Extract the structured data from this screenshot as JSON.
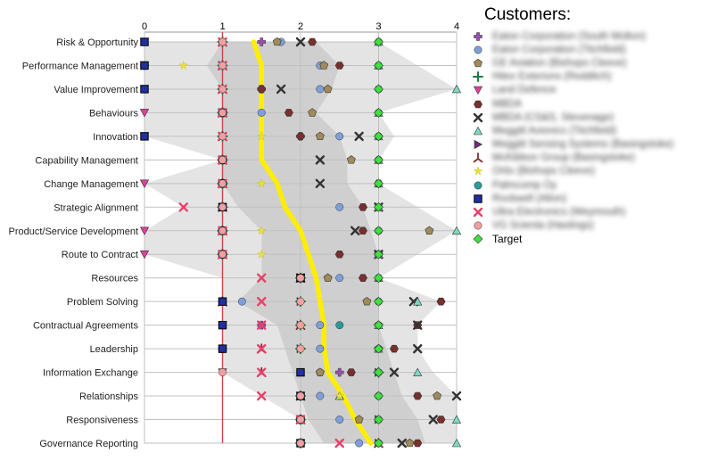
{
  "chart_data": {
    "type": "scatter",
    "orientation": "horizontal-categories",
    "x_axis": {
      "ticks": [
        "0",
        "1",
        "2",
        "3",
        "4"
      ],
      "xlim": [
        0,
        4
      ],
      "position": "top"
    },
    "categories": [
      "Risk & Opportunity",
      "Performance Management",
      "Value Improvement",
      "Behaviours",
      "Innovation",
      "Capability Management",
      "Change Management",
      "Strategic Alignment",
      "Product/Service Development",
      "Route to Contract",
      "Resources",
      "Problem Solving",
      "Contractual Agreements",
      "Leadership",
      "Information Exchange",
      "Relationships",
      "Responsiveness",
      "Governance Reporting"
    ],
    "reference_line_x": 1,
    "average_line": [
      1.4,
      1.5,
      1.5,
      1.5,
      1.5,
      1.5,
      1.7,
      1.8,
      2.0,
      2.1,
      2.2,
      2.25,
      2.3,
      2.3,
      2.35,
      2.55,
      2.7,
      2.9
    ],
    "band_outer": {
      "min": [
        0,
        0,
        0,
        0,
        0,
        1,
        0,
        0.5,
        0,
        0,
        1,
        1,
        1,
        1,
        1,
        1.5,
        2,
        2
      ],
      "max": [
        3,
        3.5,
        4,
        3,
        3.2,
        3,
        3,
        3.5,
        4,
        3.5,
        3,
        3.8,
        3.5,
        3.5,
        3.7,
        4,
        4,
        4
      ]
    },
    "band_inner": {
      "min": [
        1,
        0.8,
        1,
        1,
        1,
        1,
        1,
        1.2,
        1.5,
        1.5,
        1.5,
        1.2,
        1.7,
        1.8,
        1.9,
        2,
        2.1,
        2.3
      ],
      "max": [
        2.2,
        2.5,
        2.4,
        2.2,
        2.5,
        2.6,
        2.6,
        2.8,
        2.9,
        3,
        3,
        3,
        3,
        3.1,
        3.2,
        3.3,
        3.5,
        3.6
      ]
    },
    "series": [
      {
        "name": "Eaton Corporation (South Molton)",
        "symbol": "plus",
        "color": "#9b4fb0",
        "values": [
          1.5,
          0,
          1.5,
          1,
          2,
          1,
          1,
          1,
          1,
          1,
          2,
          1,
          1.5,
          1,
          2.5,
          2,
          2,
          2
        ]
      },
      {
        "name": "Eaton Corporation (Titchfield)",
        "symbol": "circle",
        "color": "#7f9fd8",
        "values": [
          1.75,
          2.25,
          2.25,
          1.5,
          2.5,
          1,
          1,
          2.5,
          1,
          1,
          2.5,
          1.25,
          2.25,
          2.25,
          2.25,
          2.25,
          2.5,
          2.75
        ]
      },
      {
        "name": "GE Aviation (Bishops Cleeve)",
        "symbol": "pentagon",
        "color": "#a08b5a",
        "values": [
          1.7,
          2.3,
          2.35,
          2.15,
          2.25,
          2.65,
          1,
          1,
          3.65,
          3,
          2.35,
          2.85,
          3,
          3,
          2.25,
          3.75,
          2.75,
          3.4
        ]
      },
      {
        "name": "Hitex Exterions (Redditch)",
        "symbol": "star",
        "color": "#1f7a4a",
        "values": [
          1,
          1,
          1,
          1,
          1,
          1,
          1,
          1,
          1,
          1,
          2,
          2,
          2,
          2,
          3,
          2,
          2,
          2
        ]
      },
      {
        "name": "Land Defence",
        "symbol": "triangle-down",
        "color": "#e0409a",
        "values": [
          0,
          0,
          0,
          0,
          0,
          1,
          0,
          1,
          0,
          0,
          2,
          1,
          1,
          1,
          1,
          2,
          2,
          2
        ]
      },
      {
        "name": "MBDA",
        "symbol": "hexagon",
        "color": "#7a2f2f",
        "values": [
          2.15,
          2.5,
          1.5,
          1.85,
          2,
          1,
          3,
          2.8,
          2.8,
          2.5,
          2.8,
          3.8,
          3.5,
          3.2,
          2.65,
          3.5,
          3.8,
          3.5
        ]
      },
      {
        "name": "MBDA (CS&S, Stevenage)",
        "symbol": "x",
        "color": "#333333",
        "values": [
          2,
          1,
          1.75,
          1,
          2.75,
          2.25,
          2.25,
          3,
          2.7,
          3,
          2,
          3.45,
          3.5,
          3.5,
          3.2,
          4,
          3.7,
          3.3
        ]
      },
      {
        "name": "Meggitt Avionics (Titchfield)",
        "symbol": "triangle-up",
        "color": "#7fd8c0",
        "values": [
          3,
          3,
          4,
          3,
          3,
          3,
          3,
          3,
          4,
          3,
          3,
          3.5,
          3,
          3,
          3.5,
          2.5,
          4,
          4
        ]
      },
      {
        "name": "Meggitt Sensing Systems (Basingstoke)",
        "symbol": "triangle-right",
        "color": "#6a2f7a",
        "values": [
          1,
          0,
          1,
          1,
          1,
          1,
          1,
          1,
          1,
          1,
          2,
          2,
          2,
          2,
          3,
          2,
          3,
          3
        ]
      },
      {
        "name": "McKibbon Group (Basingstoke)",
        "symbol": "tri-arrow",
        "color": "#7a3030",
        "values": [
          1,
          1,
          1,
          1,
          1,
          1,
          1,
          1,
          1,
          1,
          2,
          1,
          2,
          1.5,
          1.5,
          2,
          2,
          3
        ]
      },
      {
        "name": "Ortis (Bishops Cleeve)",
        "symbol": "asterisk",
        "color": "#e8e040",
        "values": [
          1,
          0.5,
          1,
          1,
          1.5,
          1,
          1.5,
          1,
          1.5,
          1.5,
          2,
          2,
          2,
          2,
          2,
          2.5,
          3,
          3
        ]
      },
      {
        "name": "Palmcomp Oy",
        "symbol": "circle",
        "color": "#2a9a9a",
        "values": [
          3,
          3,
          3,
          3,
          3,
          3,
          3,
          3,
          3,
          3,
          3,
          3,
          2.5,
          3,
          3,
          3,
          3,
          3
        ]
      },
      {
        "name": "Rockwell (Alton)",
        "symbol": "square",
        "color": "#2030a0",
        "values": [
          0,
          0,
          0,
          1,
          0,
          1,
          1,
          1,
          1,
          1,
          2,
          1,
          1,
          1,
          2,
          2,
          2,
          2
        ]
      },
      {
        "name": "Ultra Electronics (Weymouth)",
        "symbol": "x",
        "color": "#e8406a",
        "values": [
          1,
          1,
          1,
          1,
          1,
          1,
          1,
          0.5,
          1,
          1,
          1.5,
          1.5,
          1.5,
          1.5,
          1.5,
          1.5,
          2,
          2.5
        ]
      },
      {
        "name": "VG Scienta (Hastings)",
        "symbol": "circle",
        "color": "#f0a0a0",
        "values": [
          1,
          1,
          1,
          1,
          1,
          1,
          1,
          1,
          1,
          1,
          2,
          2,
          2,
          2,
          1,
          2,
          2,
          2
        ]
      },
      {
        "name": "Target",
        "symbol": "diamond",
        "color": "#40e040",
        "values": [
          3,
          3,
          3,
          3,
          3,
          3,
          3,
          3,
          3,
          3,
          3,
          3,
          3,
          3,
          3,
          3,
          3,
          3
        ]
      }
    ],
    "legend": {
      "title": "Customers:",
      "placement": "right"
    }
  },
  "colors": {
    "reference_line": "#cc4444",
    "average_line": "#ffee00",
    "band_outer": "#e4e4e4",
    "band_inner": "#cfcfcf",
    "grid": "#c0c0c0"
  }
}
